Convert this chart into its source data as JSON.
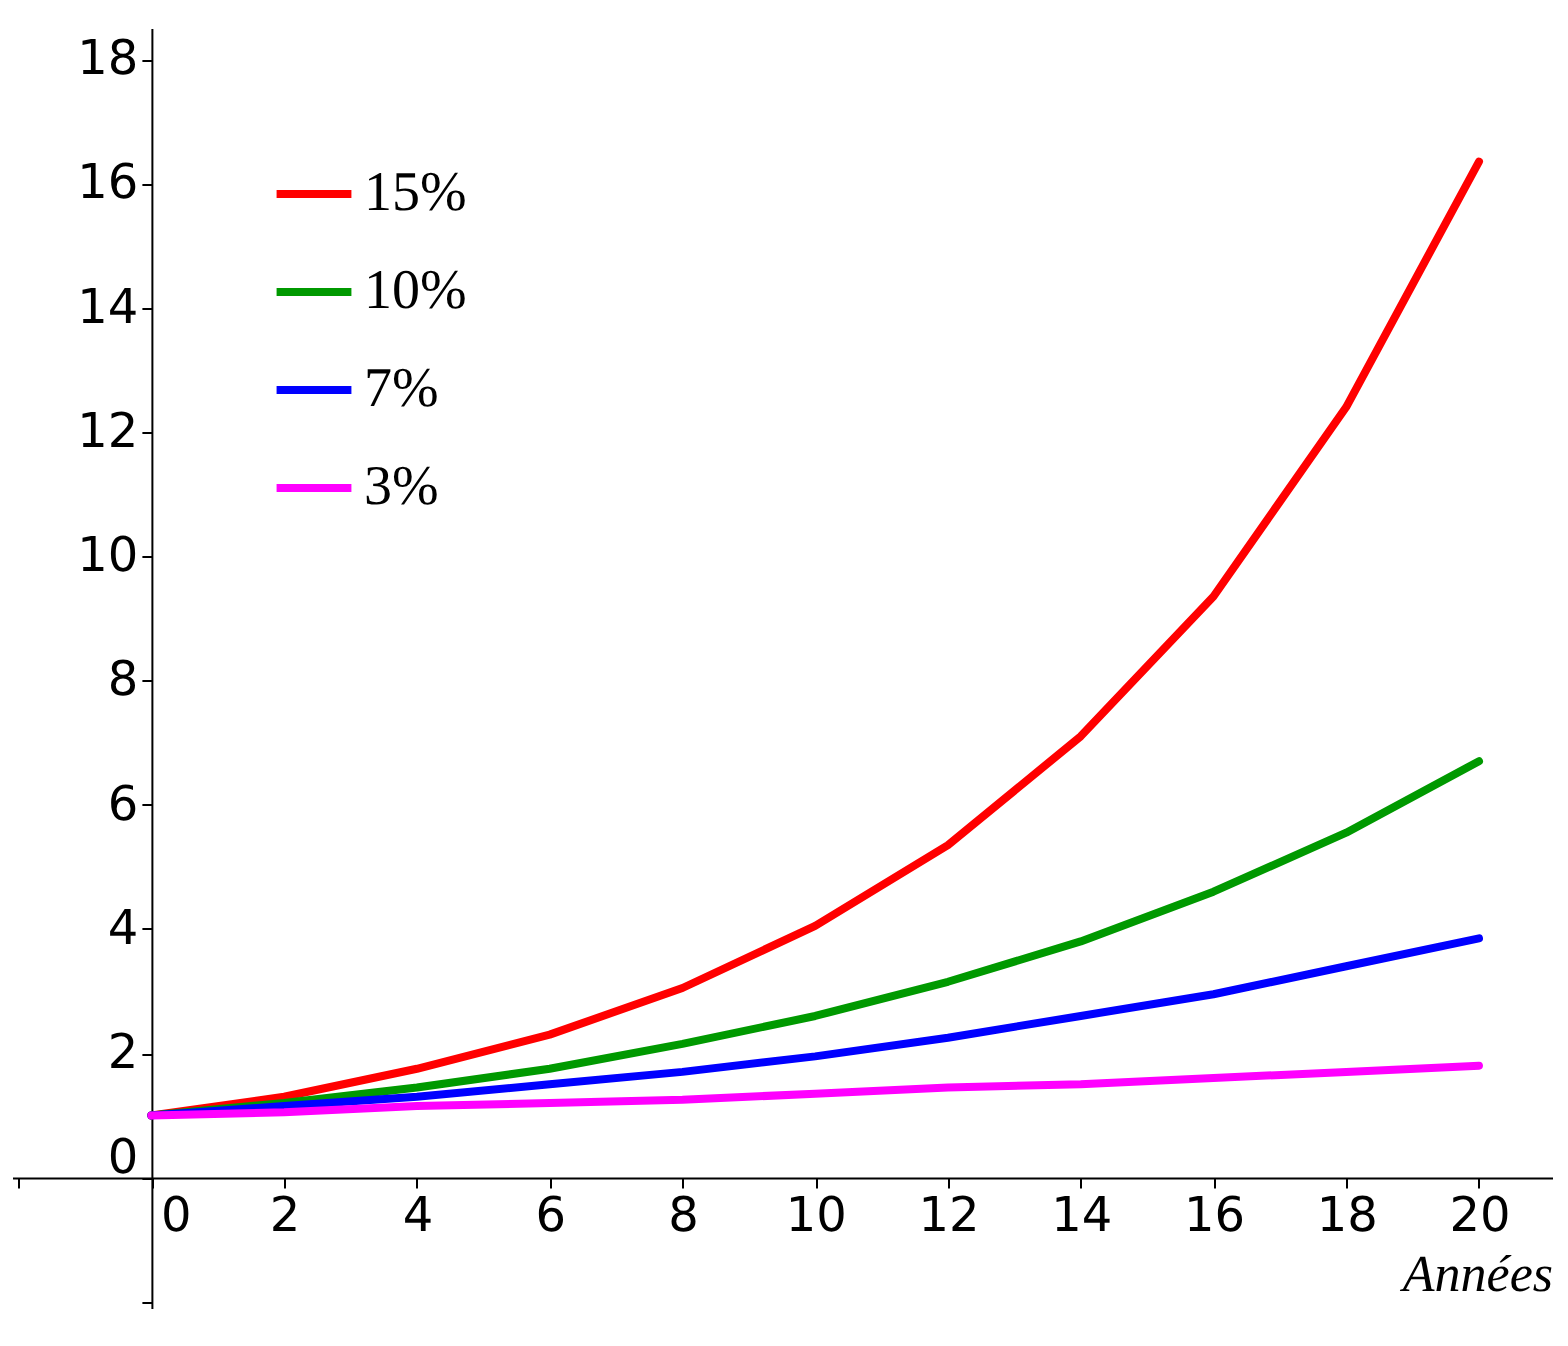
{
  "chart_data": {
    "type": "line",
    "xlabel": "Années",
    "x": [
      0,
      2,
      4,
      6,
      8,
      10,
      12,
      14,
      16,
      18,
      20
    ],
    "series": [
      {
        "name": "15%",
        "color": "#ff0000",
        "values": [
          1,
          1.3,
          1.75,
          2.3,
          3.05,
          4.05,
          5.35,
          7.1,
          9.35,
          12.4,
          16.35
        ]
      },
      {
        "name": "10%",
        "color": "#009900",
        "values": [
          1,
          1.2,
          1.45,
          1.75,
          2.15,
          2.6,
          3.15,
          3.8,
          4.6,
          5.55,
          6.7
        ]
      },
      {
        "name": "7%",
        "color": "#0000ff",
        "values": [
          1,
          1.15,
          1.3,
          1.5,
          1.7,
          1.95,
          2.25,
          2.6,
          2.95,
          3.4,
          3.85
        ]
      },
      {
        "name": "3%",
        "color": "#ff00ff",
        "values": [
          1,
          1.05,
          1.15,
          1.2,
          1.25,
          1.35,
          1.45,
          1.5,
          1.6,
          1.7,
          1.8
        ]
      }
    ],
    "xlim": [
      -2.1,
      21.1
    ],
    "ylim": [
      -2.1,
      18.5
    ],
    "xticks": [
      {
        "value": -2,
        "label": null
      },
      0,
      2,
      4,
      6,
      8,
      10,
      12,
      14,
      16,
      18,
      20
    ],
    "yticks": [
      {
        "value": -2,
        "label": null
      },
      0,
      2,
      4,
      6,
      8,
      10,
      12,
      14,
      16,
      18
    ],
    "legend": "top left",
    "grid": false,
    "marker": "none",
    "line_style": "solid"
  }
}
